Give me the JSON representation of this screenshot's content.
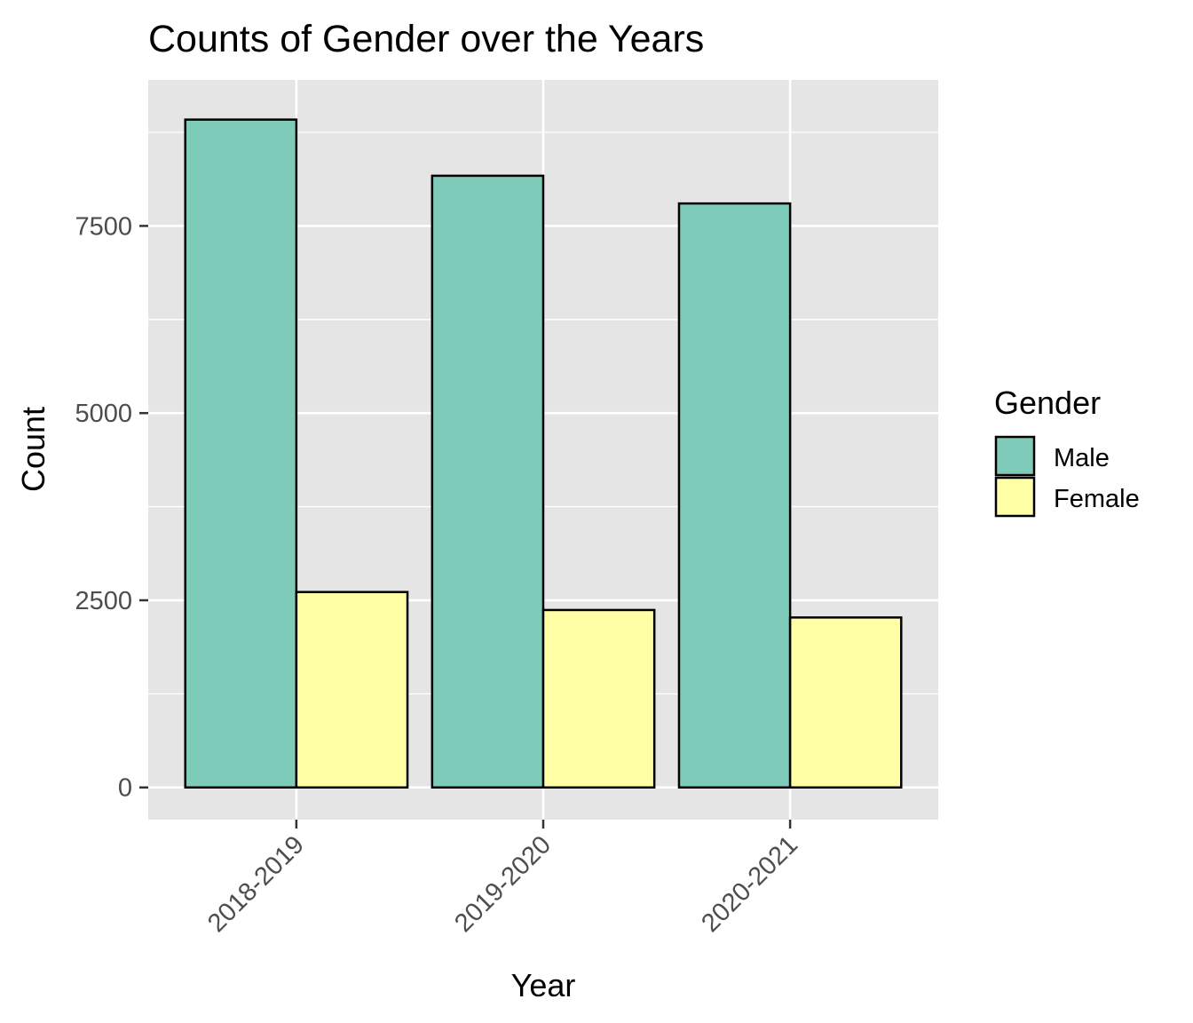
{
  "chart_data": {
    "type": "bar",
    "title": "Counts of Gender over the Years",
    "xlabel": "Year",
    "ylabel": "Count",
    "categories": [
      "2018-2019",
      "2019-2020",
      "2020-2021"
    ],
    "series": [
      {
        "name": "Male",
        "color": "#7fcbb9",
        "values": [
          8920,
          8170,
          7800
        ]
      },
      {
        "name": "Female",
        "color": "#ffffa6",
        "values": [
          2610,
          2370,
          2270
        ]
      }
    ],
    "ylim": [
      -430,
      9450
    ],
    "yticks": [
      0,
      2500,
      5000,
      7500
    ],
    "yminor": [
      1250,
      3750,
      6250,
      8750
    ],
    "legend": {
      "title": "Gender",
      "position": "right"
    },
    "grid": true,
    "panel_background": "#e5e5e5",
    "bar_outline": "#000000"
  }
}
